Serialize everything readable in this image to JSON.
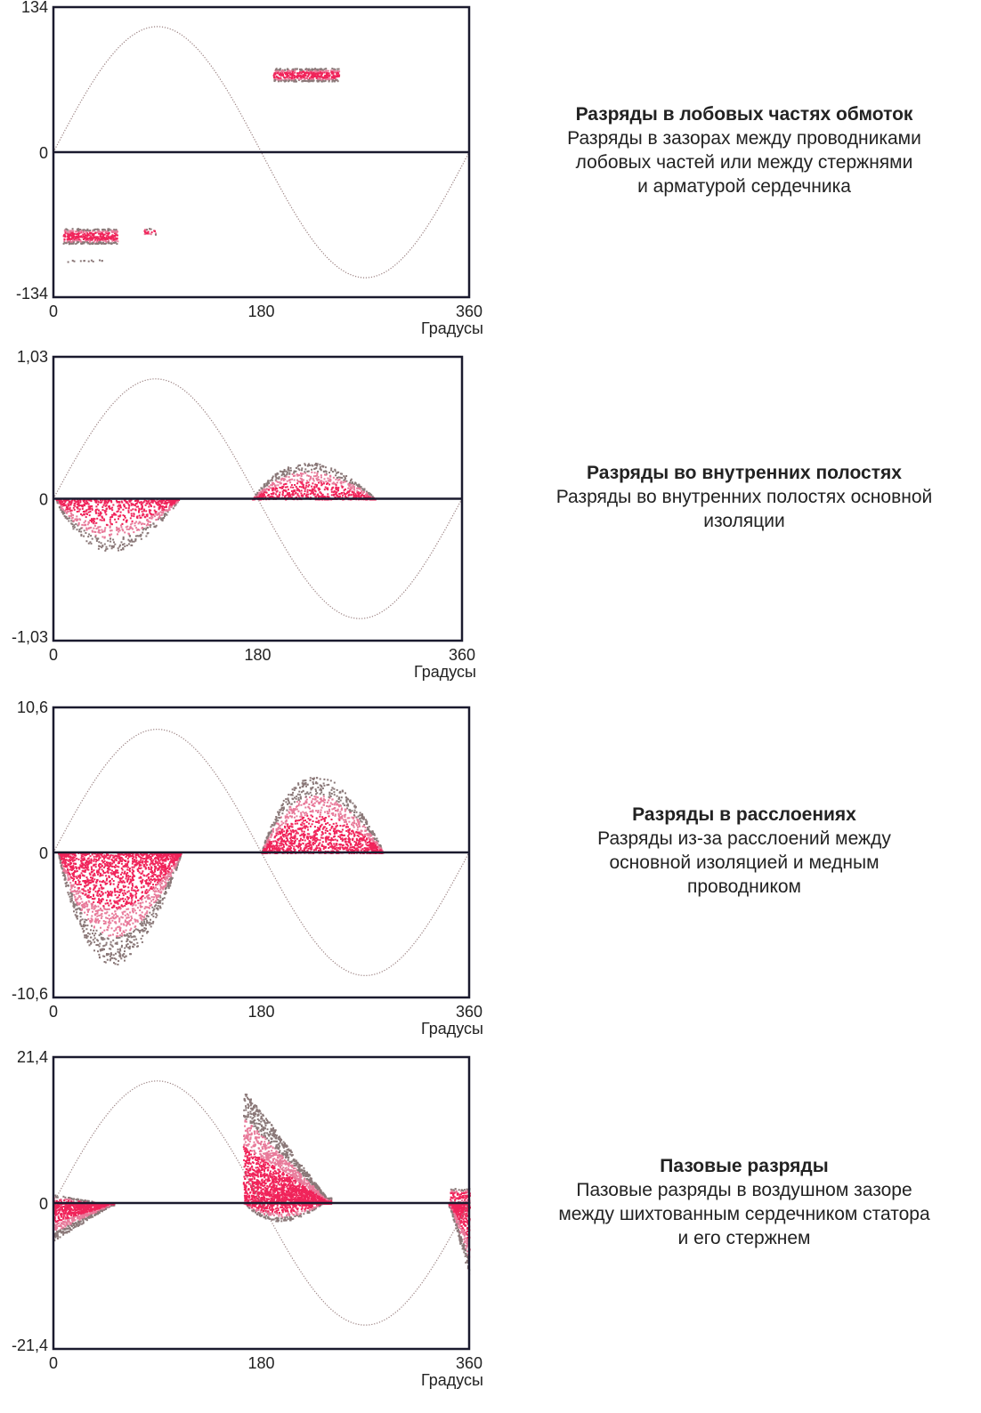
{
  "colors": {
    "frame": "#1a1a2e",
    "core": "#f0245a",
    "mid": "#e87a9a",
    "outer": "#8a7878",
    "sine": "#9a8080"
  },
  "chart_data": [
    {
      "type": "scatter",
      "xlabel": "Градусы",
      "x_ticks": [
        "0",
        "180",
        "360"
      ],
      "y_ticks": [
        "134",
        "0",
        "-134"
      ],
      "xlim": [
        0,
        360
      ],
      "ylim": [
        -134,
        134
      ],
      "sine_amplitude": 116,
      "caption": {
        "title": "Разряды в лобовых частях обмоток",
        "lines": [
          "Разряды в зазорах между проводниками",
          "лобовых частей или между стержнями",
          "и арматурой сердечника"
        ]
      },
      "clusters": [
        {
          "shape": "band",
          "phase": [
            190,
            247
          ],
          "amp": [
            66,
            78
          ],
          "n": 500
        },
        {
          "shape": "band",
          "phase": [
            8,
            55
          ],
          "amp": [
            -84,
            -70
          ],
          "n": 450
        },
        {
          "shape": "band",
          "phase": [
            78,
            88
          ],
          "amp": [
            -76,
            -70
          ],
          "n": 25
        },
        {
          "shape": "sparse",
          "phase": [
            12,
            45
          ],
          "amp": [
            -101,
            -99
          ],
          "n": 12
        }
      ]
    },
    {
      "type": "scatter",
      "xlabel": "Градусы",
      "x_ticks": [
        "0",
        "180",
        "360"
      ],
      "y_ticks": [
        "1,03",
        "0",
        "-1,03"
      ],
      "xlim": [
        0,
        360
      ],
      "ylim": [
        -1.03,
        1.03
      ],
      "sine_amplitude": 0.87,
      "caption": {
        "title": "Разряды во внутренних полостях",
        "lines": [
          "Разряды во внутренних полостях основной",
          "изоляции"
        ]
      },
      "clusters": [
        {
          "shape": "mound",
          "phase": [
            175,
            283
          ],
          "amp": [
            0,
            0.32
          ],
          "n": 900
        },
        {
          "shape": "mound",
          "phase": [
            2,
            110
          ],
          "amp": [
            0,
            -0.45
          ],
          "n": 900
        }
      ]
    },
    {
      "type": "scatter",
      "xlabel": "Градусы",
      "x_ticks": [
        "0",
        "180",
        "360"
      ],
      "y_ticks": [
        "10,6",
        "0",
        "-10,6"
      ],
      "xlim": [
        0,
        360
      ],
      "ylim": [
        -10.6,
        10.6
      ],
      "sine_amplitude": 9.0,
      "caption": {
        "title": "Разряды в расслоениях",
        "lines": [
          "Разряды из-за расслоений между",
          "основной изоляцией и медным",
          "проводником"
        ]
      },
      "clusters": [
        {
          "shape": "mound",
          "phase": [
            180,
            285
          ],
          "amp": [
            0,
            6.8
          ],
          "n": 1600
        },
        {
          "shape": "mound",
          "phase": [
            4,
            110
          ],
          "amp": [
            0,
            -9.8
          ],
          "n": 2200
        }
      ]
    },
    {
      "type": "scatter",
      "xlabel": "Градусы",
      "x_ticks": [
        "0",
        "180",
        "360"
      ],
      "y_ticks": [
        "21,4",
        "0",
        "-21,4"
      ],
      "xlim": [
        0,
        360
      ],
      "ylim": [
        -21.4,
        21.4
      ],
      "sine_amplitude": 17.9,
      "caption": {
        "title": "Пазовые разряды",
        "lines": [
          "Пазовые разряды в воздушном зазоре",
          "между шихтованным сердечником статора",
          "и его стержнем"
        ]
      },
      "clusters": [
        {
          "shape": "triangle",
          "phase": [
            164,
            240
          ],
          "amp": [
            0,
            17
          ],
          "n": 2600
        },
        {
          "shape": "triangle",
          "phase": [
            0,
            45
          ],
          "amp": [
            0,
            1.3
          ],
          "n": 120
        },
        {
          "shape": "band",
          "phase": [
            343,
            360
          ],
          "amp": [
            0,
            2.2
          ],
          "n": 120
        },
        {
          "shape": "triangle",
          "phase": [
            0,
            52
          ],
          "amp": [
            0,
            -5.5
          ],
          "n": 900
        },
        {
          "shape": "mound",
          "phase": [
            166,
            232
          ],
          "amp": [
            0,
            -3.2
          ],
          "n": 400
        },
        {
          "shape": "triangle",
          "phase": [
            342,
            360
          ],
          "amp": [
            0,
            -11
          ],
          "n": 500,
          "reverse": true
        }
      ]
    }
  ]
}
